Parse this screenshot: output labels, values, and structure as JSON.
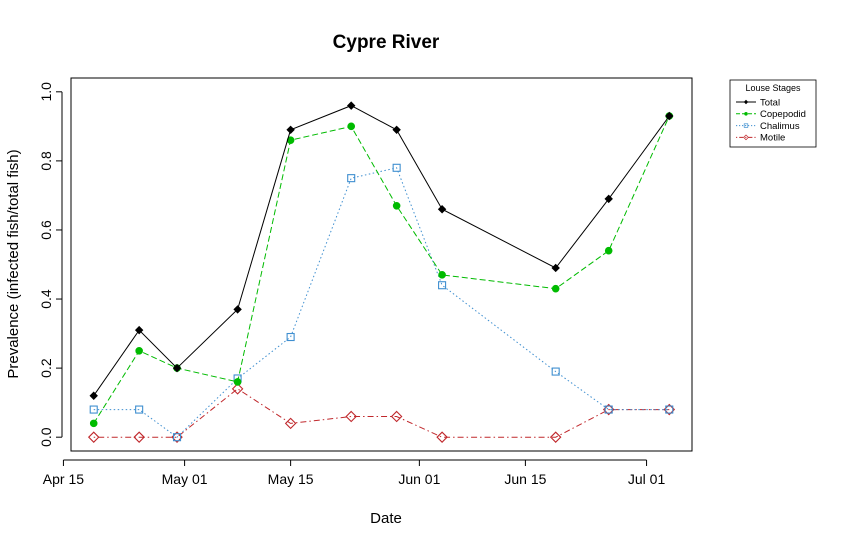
{
  "chart_data": {
    "type": "line",
    "title": "Cypre River",
    "xlabel": "Date",
    "ylabel": "Prevalence (infected fish/total fish)",
    "x": [
      "2015-04-19",
      "2015-04-25",
      "2015-04-30",
      "2015-05-08",
      "2015-05-15",
      "2015-05-23",
      "2015-05-29",
      "2015-06-04",
      "2015-06-19",
      "2015-06-26",
      "2015-07-04"
    ],
    "xlim": [
      "2015-04-16",
      "2015-07-07"
    ],
    "ylim": [
      -0.04,
      1.04
    ],
    "x_ticks": [
      {
        "date": "2015-04-15",
        "label": "Apr 15"
      },
      {
        "date": "2015-05-01",
        "label": "May 01"
      },
      {
        "date": "2015-05-15",
        "label": "May 15"
      },
      {
        "date": "2015-06-01",
        "label": "Jun 01"
      },
      {
        "date": "2015-06-15",
        "label": "Jun 15"
      },
      {
        "date": "2015-07-01",
        "label": "Jul 01"
      }
    ],
    "y_ticks": [
      "0.0",
      "0.2",
      "0.4",
      "0.6",
      "0.8",
      "1.0"
    ],
    "grid": false,
    "legend": {
      "title": "Louse Stages",
      "position": "outside-top-right"
    },
    "series": [
      {
        "name": "Total",
        "color": "#000000",
        "marker": "filled-diamond",
        "line": "solid",
        "values": [
          0.12,
          0.31,
          0.2,
          0.37,
          0.89,
          0.96,
          0.89,
          0.66,
          0.49,
          0.69,
          0.93
        ]
      },
      {
        "name": "Copepodid",
        "color": "#00BB00",
        "marker": "filled-circle",
        "line": "dashed",
        "values": [
          0.04,
          0.25,
          0.2,
          0.16,
          0.86,
          0.9,
          0.67,
          0.47,
          0.43,
          0.54,
          0.93
        ]
      },
      {
        "name": "Chalimus",
        "color": "#3F8FD0",
        "marker": "open-square",
        "line": "dotted",
        "values": [
          0.08,
          0.08,
          0.0,
          0.17,
          0.29,
          0.75,
          0.78,
          0.44,
          0.19,
          0.08,
          0.08
        ]
      },
      {
        "name": "Motile",
        "color": "#C0282C",
        "marker": "open-diamond",
        "line": "dotdash",
        "values": [
          0.0,
          0.0,
          0.0,
          0.14,
          0.04,
          0.06,
          0.06,
          0.0,
          0.0,
          0.08,
          0.08
        ]
      }
    ]
  }
}
